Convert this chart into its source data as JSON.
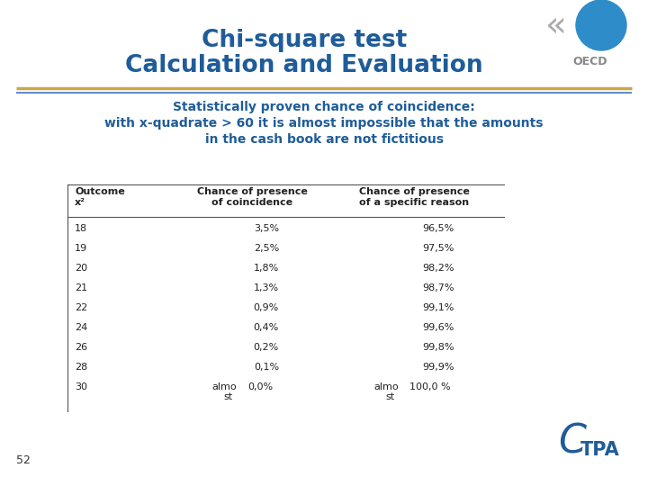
{
  "title_line1": "Chi-square test",
  "title_line2": "Calculation and Evaluation",
  "title_color": "#1F5C99",
  "subtitle_line1": "Statistically proven chance of coincidence:",
  "subtitle_line2": "with x-quadrate > 60 it is almost impossible that the amounts",
  "subtitle_line3": "in the cash book are not fictitious",
  "subtitle_color": "#1F5C99",
  "col_headers": [
    "Outcome\nx²",
    "Chance of presence\nof coincidence",
    "Chance of presence\nof a specific reason"
  ],
  "rows": [
    [
      "18",
      "3,5%",
      "96,5%"
    ],
    [
      "19",
      "2,5%",
      "97,5%"
    ],
    [
      "20",
      "1,8%",
      "98,2%"
    ],
    [
      "21",
      "1,3%",
      "98,7%"
    ],
    [
      "22",
      "0,9%",
      "99,1%"
    ],
    [
      "24",
      "0,4%",
      "99,6%"
    ],
    [
      "26",
      "0,2%",
      "99,8%"
    ],
    [
      "28",
      "0,1%",
      "99,9%"
    ],
    [
      "30",
      "0,0%",
      "100,0 %"
    ]
  ],
  "table_text_color": "#222222",
  "header_text_color": "#222222",
  "bg_color": "#FFFFFF",
  "separator_color_gold": "#C8A84B",
  "separator_color_blue": "#4472C4",
  "page_number": "52",
  "oecd_circle_color": "#2E8DC8",
  "oecd_text_color": "#888888",
  "tpa_color": "#1F5C99"
}
